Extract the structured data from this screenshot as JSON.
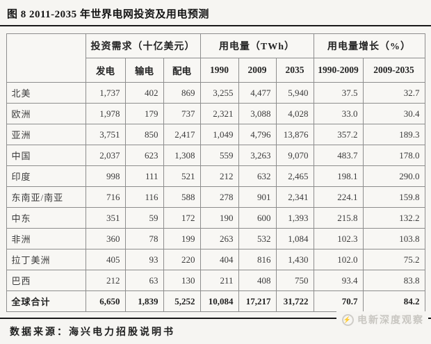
{
  "title": "图 8 2011-2035 年世界电网投资及用电预测",
  "table": {
    "groups": [
      "投资需求（十亿美元）",
      "用电量（TWh）",
      "用电量增长（%）"
    ],
    "columns": [
      "发电",
      "输电",
      "配电",
      "1990",
      "2009",
      "2035",
      "1990-2009",
      "2009-2035"
    ],
    "rows": [
      {
        "region": "北美",
        "values": [
          "1,737",
          "402",
          "869",
          "3,255",
          "4,477",
          "5,940",
          "37.5",
          "32.7"
        ]
      },
      {
        "region": "欧洲",
        "values": [
          "1,978",
          "179",
          "737",
          "2,321",
          "3,088",
          "4,028",
          "33.0",
          "30.4"
        ]
      },
      {
        "region": "亚洲",
        "values": [
          "3,751",
          "850",
          "2,417",
          "1,049",
          "4,796",
          "13,876",
          "357.2",
          "189.3"
        ]
      },
      {
        "region": "中国",
        "values": [
          "2,037",
          "623",
          "1,308",
          "559",
          "3,263",
          "9,070",
          "483.7",
          "178.0"
        ]
      },
      {
        "region": "印度",
        "values": [
          "998",
          "111",
          "521",
          "212",
          "632",
          "2,465",
          "198.1",
          "290.0"
        ]
      },
      {
        "region": "东南亚/南亚",
        "values": [
          "716",
          "116",
          "588",
          "278",
          "901",
          "2,341",
          "224.1",
          "159.8"
        ]
      },
      {
        "region": "中东",
        "values": [
          "351",
          "59",
          "172",
          "190",
          "600",
          "1,393",
          "215.8",
          "132.2"
        ]
      },
      {
        "region": "非洲",
        "values": [
          "360",
          "78",
          "199",
          "263",
          "532",
          "1,084",
          "102.3",
          "103.8"
        ]
      },
      {
        "region": "拉丁美洲",
        "values": [
          "405",
          "93",
          "220",
          "404",
          "816",
          "1,430",
          "102.0",
          "75.2"
        ]
      },
      {
        "region": "巴西",
        "values": [
          "212",
          "63",
          "130",
          "211",
          "408",
          "750",
          "93.4",
          "83.8"
        ]
      },
      {
        "region": "全球合计",
        "values": [
          "6,650",
          "1,839",
          "5,252",
          "10,084",
          "17,217",
          "31,722",
          "70.7",
          "84.2"
        ],
        "bold": true
      }
    ]
  },
  "footer": {
    "source": "数据来源：海兴电力招股说明书",
    "watermark": "电新深度观察",
    "watermark_icon": "lightning-bolt"
  },
  "colors": {
    "page_bg": "#f6f5f2",
    "rule": "#181818",
    "table_border": "#8d8d8d",
    "watermark": "#c8c6c1"
  }
}
